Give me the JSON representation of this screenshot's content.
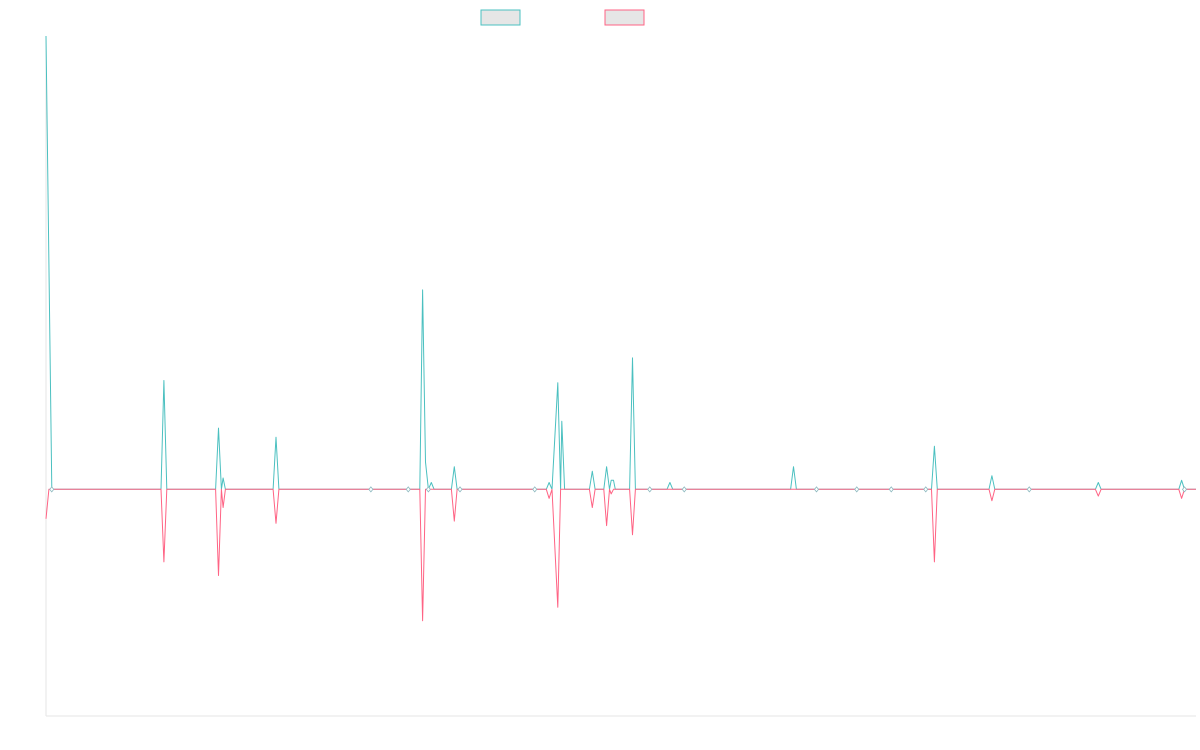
{
  "chart_data": {
    "type": "line",
    "title": "",
    "xlabel": "",
    "ylabel": "",
    "grid": false,
    "legend_position": "top-center",
    "xlim": [
      0,
      200
    ],
    "ylim": [
      -100,
      200
    ],
    "series": [
      {
        "color": "#4bc0c0",
        "fill": "#e6e6e6",
        "points": [
          [
            0,
            200
          ],
          [
            1,
            0
          ],
          [
            20,
            0
          ],
          [
            20.5,
            48
          ],
          [
            21,
            0
          ],
          [
            29.5,
            0
          ],
          [
            30,
            27
          ],
          [
            30.5,
            0
          ],
          [
            30.8,
            5
          ],
          [
            31.2,
            0
          ],
          [
            39.5,
            0
          ],
          [
            40,
            23
          ],
          [
            40.5,
            0
          ],
          [
            65,
            0
          ],
          [
            65.5,
            88
          ],
          [
            66,
            12
          ],
          [
            66.5,
            0
          ],
          [
            67,
            3
          ],
          [
            67.5,
            0
          ],
          [
            70.5,
            0
          ],
          [
            71,
            10
          ],
          [
            71.5,
            0
          ],
          [
            87,
            0
          ],
          [
            87.5,
            3
          ],
          [
            88,
            0
          ],
          [
            89,
            47
          ],
          [
            89.5,
            0
          ],
          [
            89.7,
            30
          ],
          [
            90.2,
            0
          ],
          [
            94.5,
            0
          ],
          [
            95,
            8
          ],
          [
            95.5,
            0
          ],
          [
            97,
            0
          ],
          [
            97.5,
            10
          ],
          [
            98,
            0
          ],
          [
            98.3,
            4
          ],
          [
            98.7,
            4
          ],
          [
            99,
            0
          ],
          [
            101.5,
            0
          ],
          [
            102,
            58
          ],
          [
            102.5,
            0
          ],
          [
            108,
            0
          ],
          [
            108.5,
            3
          ],
          [
            109,
            0
          ],
          [
            129.5,
            0
          ],
          [
            130,
            10
          ],
          [
            130.5,
            0
          ],
          [
            154,
            0
          ],
          [
            154.5,
            19
          ],
          [
            155,
            0
          ],
          [
            164,
            0
          ],
          [
            164.5,
            6
          ],
          [
            165,
            0
          ],
          [
            182.5,
            0
          ],
          [
            183,
            3
          ],
          [
            183.5,
            0
          ],
          [
            197,
            0
          ],
          [
            197.5,
            4
          ],
          [
            198,
            0
          ],
          [
            200,
            0
          ]
        ]
      },
      {
        "color": "#ff6384",
        "fill": "#e6e6e6",
        "points": [
          [
            0,
            -13
          ],
          [
            0.5,
            0
          ],
          [
            20,
            0
          ],
          [
            20.5,
            -32
          ],
          [
            21,
            0
          ],
          [
            29.5,
            0
          ],
          [
            30,
            -38
          ],
          [
            30.5,
            0
          ],
          [
            30.8,
            -8
          ],
          [
            31.2,
            0
          ],
          [
            39.5,
            0
          ],
          [
            40,
            -15
          ],
          [
            40.5,
            0
          ],
          [
            65,
            0
          ],
          [
            65.5,
            -58
          ],
          [
            66,
            0
          ],
          [
            70.5,
            0
          ],
          [
            71,
            -14
          ],
          [
            71.5,
            0
          ],
          [
            87,
            0
          ],
          [
            87.5,
            -4
          ],
          [
            88,
            0
          ],
          [
            89,
            -52
          ],
          [
            89.5,
            0
          ],
          [
            94.5,
            0
          ],
          [
            95,
            -8
          ],
          [
            95.5,
            0
          ],
          [
            97,
            0
          ],
          [
            97.5,
            -16
          ],
          [
            98,
            0
          ],
          [
            98.3,
            -2
          ],
          [
            98.7,
            0
          ],
          [
            101.5,
            0
          ],
          [
            102,
            -20
          ],
          [
            102.5,
            0
          ],
          [
            154,
            0
          ],
          [
            154.5,
            -32
          ],
          [
            155,
            0
          ],
          [
            164,
            0
          ],
          [
            164.5,
            -5
          ],
          [
            165,
            0
          ],
          [
            182.5,
            0
          ],
          [
            183,
            -3
          ],
          [
            183.5,
            0
          ],
          [
            197,
            0
          ],
          [
            197.5,
            -4
          ],
          [
            198,
            0
          ],
          [
            200,
            0
          ]
        ]
      }
    ],
    "markers_x": [
      1,
      56.5,
      63,
      66.5,
      72,
      85,
      105,
      111,
      134,
      141,
      147,
      153,
      171,
      198
    ]
  }
}
